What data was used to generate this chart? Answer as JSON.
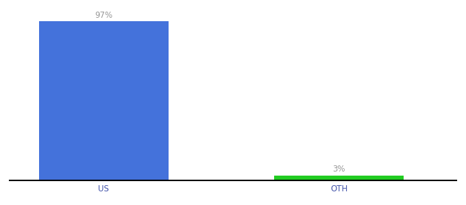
{
  "categories": [
    "US",
    "OTH"
  ],
  "values": [
    97,
    3
  ],
  "bar_colors": [
    "#4472db",
    "#22cc22"
  ],
  "labels": [
    "97%",
    "3%"
  ],
  "label_color": "#999999",
  "ylim": [
    0,
    100
  ],
  "background_color": "#ffffff",
  "axis_line_color": "#000000",
  "tick_color": "#4455aa",
  "label_fontsize": 8.5,
  "tick_fontsize": 8.5,
  "bar_width": 0.55,
  "xlim": [
    -0.4,
    1.5
  ]
}
